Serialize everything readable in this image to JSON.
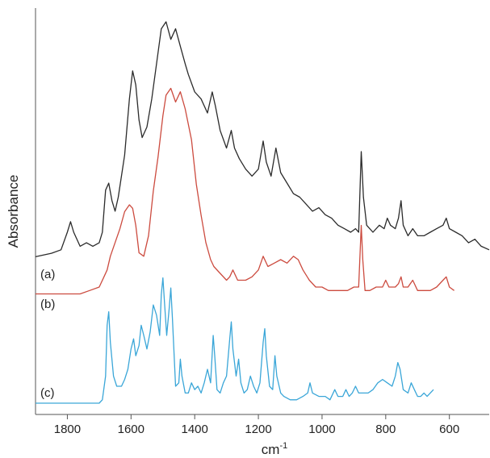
{
  "chart_data": {
    "type": "line",
    "xlabel": "cm",
    "xlabel_superscript": "-1",
    "ylabel": "Absorbance",
    "xlim": [
      1900,
      475
    ],
    "x_reversed": true,
    "x_ticks": [
      1800,
      1600,
      1400,
      1200,
      1000,
      800,
      600
    ],
    "y_ticks_shown": false,
    "grid": false,
    "legend": "none",
    "series": [
      {
        "label": "(a)",
        "color": "#2b2b2b",
        "points": [
          [
            1900,
            0.13
          ],
          [
            1850,
            0.14
          ],
          [
            1820,
            0.15
          ],
          [
            1800,
            0.2
          ],
          [
            1790,
            0.23
          ],
          [
            1780,
            0.2
          ],
          [
            1760,
            0.16
          ],
          [
            1740,
            0.17
          ],
          [
            1720,
            0.16
          ],
          [
            1700,
            0.17
          ],
          [
            1690,
            0.2
          ],
          [
            1680,
            0.32
          ],
          [
            1670,
            0.34
          ],
          [
            1660,
            0.29
          ],
          [
            1650,
            0.26
          ],
          [
            1640,
            0.3
          ],
          [
            1620,
            0.42
          ],
          [
            1605,
            0.58
          ],
          [
            1595,
            0.66
          ],
          [
            1585,
            0.62
          ],
          [
            1575,
            0.52
          ],
          [
            1565,
            0.47
          ],
          [
            1550,
            0.5
          ],
          [
            1535,
            0.58
          ],
          [
            1520,
            0.68
          ],
          [
            1505,
            0.78
          ],
          [
            1490,
            0.8
          ],
          [
            1475,
            0.75
          ],
          [
            1460,
            0.78
          ],
          [
            1445,
            0.73
          ],
          [
            1430,
            0.68
          ],
          [
            1420,
            0.65
          ],
          [
            1400,
            0.6
          ],
          [
            1380,
            0.58
          ],
          [
            1360,
            0.54
          ],
          [
            1345,
            0.6
          ],
          [
            1335,
            0.56
          ],
          [
            1320,
            0.49
          ],
          [
            1300,
            0.44
          ],
          [
            1285,
            0.49
          ],
          [
            1275,
            0.44
          ],
          [
            1260,
            0.41
          ],
          [
            1240,
            0.38
          ],
          [
            1220,
            0.36
          ],
          [
            1200,
            0.38
          ],
          [
            1185,
            0.46
          ],
          [
            1175,
            0.4
          ],
          [
            1160,
            0.36
          ],
          [
            1145,
            0.44
          ],
          [
            1130,
            0.37
          ],
          [
            1110,
            0.34
          ],
          [
            1090,
            0.31
          ],
          [
            1070,
            0.3
          ],
          [
            1050,
            0.28
          ],
          [
            1030,
            0.26
          ],
          [
            1010,
            0.27
          ],
          [
            990,
            0.25
          ],
          [
            970,
            0.24
          ],
          [
            950,
            0.22
          ],
          [
            930,
            0.21
          ],
          [
            910,
            0.2
          ],
          [
            895,
            0.21
          ],
          [
            885,
            0.2
          ],
          [
            877,
            0.43
          ],
          [
            870,
            0.3
          ],
          [
            860,
            0.22
          ],
          [
            840,
            0.2
          ],
          [
            820,
            0.22
          ],
          [
            805,
            0.21
          ],
          [
            795,
            0.24
          ],
          [
            785,
            0.22
          ],
          [
            770,
            0.21
          ],
          [
            760,
            0.24
          ],
          [
            752,
            0.29
          ],
          [
            745,
            0.22
          ],
          [
            730,
            0.19
          ],
          [
            715,
            0.21
          ],
          [
            700,
            0.19
          ],
          [
            680,
            0.19
          ],
          [
            660,
            0.2
          ],
          [
            640,
            0.21
          ],
          [
            620,
            0.22
          ],
          [
            610,
            0.24
          ],
          [
            600,
            0.21
          ],
          [
            580,
            0.2
          ],
          [
            560,
            0.19
          ],
          [
            540,
            0.17
          ],
          [
            520,
            0.18
          ],
          [
            500,
            0.16
          ],
          [
            475,
            0.15
          ]
        ]
      },
      {
        "label": "(b)",
        "color": "#cc4b3f",
        "points": [
          [
            1900,
            0.1
          ],
          [
            1800,
            0.1
          ],
          [
            1760,
            0.1
          ],
          [
            1730,
            0.11
          ],
          [
            1700,
            0.12
          ],
          [
            1685,
            0.15
          ],
          [
            1675,
            0.17
          ],
          [
            1665,
            0.21
          ],
          [
            1650,
            0.25
          ],
          [
            1635,
            0.29
          ],
          [
            1620,
            0.34
          ],
          [
            1605,
            0.36
          ],
          [
            1595,
            0.35
          ],
          [
            1585,
            0.3
          ],
          [
            1575,
            0.22
          ],
          [
            1560,
            0.21
          ],
          [
            1545,
            0.27
          ],
          [
            1530,
            0.4
          ],
          [
            1515,
            0.5
          ],
          [
            1500,
            0.62
          ],
          [
            1490,
            0.68
          ],
          [
            1475,
            0.7
          ],
          [
            1460,
            0.66
          ],
          [
            1445,
            0.69
          ],
          [
            1430,
            0.64
          ],
          [
            1410,
            0.55
          ],
          [
            1395,
            0.42
          ],
          [
            1380,
            0.33
          ],
          [
            1365,
            0.25
          ],
          [
            1350,
            0.2
          ],
          [
            1340,
            0.18
          ],
          [
            1320,
            0.16
          ],
          [
            1300,
            0.14
          ],
          [
            1290,
            0.15
          ],
          [
            1280,
            0.17
          ],
          [
            1265,
            0.14
          ],
          [
            1240,
            0.14
          ],
          [
            1220,
            0.15
          ],
          [
            1200,
            0.17
          ],
          [
            1185,
            0.21
          ],
          [
            1170,
            0.18
          ],
          [
            1150,
            0.19
          ],
          [
            1130,
            0.2
          ],
          [
            1110,
            0.19
          ],
          [
            1090,
            0.21
          ],
          [
            1075,
            0.2
          ],
          [
            1060,
            0.17
          ],
          [
            1040,
            0.14
          ],
          [
            1020,
            0.12
          ],
          [
            1000,
            0.12
          ],
          [
            980,
            0.11
          ],
          [
            960,
            0.11
          ],
          [
            940,
            0.11
          ],
          [
            920,
            0.11
          ],
          [
            900,
            0.12
          ],
          [
            885,
            0.12
          ],
          [
            877,
            0.3
          ],
          [
            872,
            0.2
          ],
          [
            865,
            0.11
          ],
          [
            850,
            0.11
          ],
          [
            830,
            0.12
          ],
          [
            810,
            0.12
          ],
          [
            800,
            0.14
          ],
          [
            790,
            0.12
          ],
          [
            770,
            0.12
          ],
          [
            760,
            0.13
          ],
          [
            752,
            0.15
          ],
          [
            745,
            0.12
          ],
          [
            730,
            0.12
          ],
          [
            715,
            0.14
          ],
          [
            700,
            0.11
          ],
          [
            680,
            0.11
          ],
          [
            660,
            0.11
          ],
          [
            640,
            0.12
          ],
          [
            620,
            0.14
          ],
          [
            610,
            0.15
          ],
          [
            600,
            0.12
          ],
          [
            585,
            0.11
          ]
        ]
      },
      {
        "label": "(c)",
        "color": "#3aa6d8",
        "points": [
          [
            1900,
            0.0
          ],
          [
            1800,
            0.0
          ],
          [
            1750,
            0.0
          ],
          [
            1700,
            0.0
          ],
          [
            1690,
            0.01
          ],
          [
            1680,
            0.08
          ],
          [
            1675,
            0.23
          ],
          [
            1670,
            0.27
          ],
          [
            1665,
            0.18
          ],
          [
            1655,
            0.08
          ],
          [
            1645,
            0.05
          ],
          [
            1630,
            0.05
          ],
          [
            1620,
            0.07
          ],
          [
            1610,
            0.1
          ],
          [
            1600,
            0.16
          ],
          [
            1592,
            0.19
          ],
          [
            1585,
            0.14
          ],
          [
            1575,
            0.17
          ],
          [
            1568,
            0.23
          ],
          [
            1560,
            0.2
          ],
          [
            1550,
            0.16
          ],
          [
            1540,
            0.21
          ],
          [
            1530,
            0.29
          ],
          [
            1520,
            0.26
          ],
          [
            1510,
            0.2
          ],
          [
            1505,
            0.32
          ],
          [
            1500,
            0.37
          ],
          [
            1495,
            0.3
          ],
          [
            1488,
            0.2
          ],
          [
            1480,
            0.28
          ],
          [
            1475,
            0.34
          ],
          [
            1470,
            0.25
          ],
          [
            1460,
            0.05
          ],
          [
            1450,
            0.06
          ],
          [
            1445,
            0.13
          ],
          [
            1440,
            0.08
          ],
          [
            1430,
            0.03
          ],
          [
            1420,
            0.03
          ],
          [
            1410,
            0.06
          ],
          [
            1400,
            0.04
          ],
          [
            1390,
            0.05
          ],
          [
            1380,
            0.03
          ],
          [
            1370,
            0.06
          ],
          [
            1360,
            0.1
          ],
          [
            1350,
            0.06
          ],
          [
            1342,
            0.2
          ],
          [
            1337,
            0.14
          ],
          [
            1330,
            0.04
          ],
          [
            1320,
            0.03
          ],
          [
            1310,
            0.06
          ],
          [
            1300,
            0.08
          ],
          [
            1290,
            0.19
          ],
          [
            1285,
            0.24
          ],
          [
            1280,
            0.16
          ],
          [
            1270,
            0.08
          ],
          [
            1262,
            0.13
          ],
          [
            1255,
            0.06
          ],
          [
            1245,
            0.03
          ],
          [
            1235,
            0.04
          ],
          [
            1225,
            0.08
          ],
          [
            1215,
            0.05
          ],
          [
            1205,
            0.03
          ],
          [
            1195,
            0.06
          ],
          [
            1185,
            0.18
          ],
          [
            1180,
            0.22
          ],
          [
            1175,
            0.14
          ],
          [
            1165,
            0.05
          ],
          [
            1155,
            0.04
          ],
          [
            1148,
            0.14
          ],
          [
            1142,
            0.08
          ],
          [
            1130,
            0.03
          ],
          [
            1120,
            0.02
          ],
          [
            1100,
            0.01
          ],
          [
            1080,
            0.01
          ],
          [
            1060,
            0.02
          ],
          [
            1045,
            0.03
          ],
          [
            1038,
            0.06
          ],
          [
            1030,
            0.03
          ],
          [
            1010,
            0.02
          ],
          [
            990,
            0.02
          ],
          [
            975,
            0.01
          ],
          [
            960,
            0.04
          ],
          [
            950,
            0.02
          ],
          [
            935,
            0.02
          ],
          [
            925,
            0.04
          ],
          [
            915,
            0.02
          ],
          [
            905,
            0.03
          ],
          [
            895,
            0.05
          ],
          [
            885,
            0.03
          ],
          [
            870,
            0.03
          ],
          [
            855,
            0.03
          ],
          [
            840,
            0.04
          ],
          [
            825,
            0.06
          ],
          [
            810,
            0.07
          ],
          [
            795,
            0.06
          ],
          [
            780,
            0.05
          ],
          [
            770,
            0.08
          ],
          [
            762,
            0.12
          ],
          [
            755,
            0.1
          ],
          [
            745,
            0.04
          ],
          [
            730,
            0.03
          ],
          [
            720,
            0.06
          ],
          [
            710,
            0.04
          ],
          [
            700,
            0.02
          ],
          [
            690,
            0.02
          ],
          [
            680,
            0.03
          ],
          [
            670,
            0.02
          ],
          [
            660,
            0.03
          ],
          [
            650,
            0.04
          ]
        ]
      }
    ]
  }
}
